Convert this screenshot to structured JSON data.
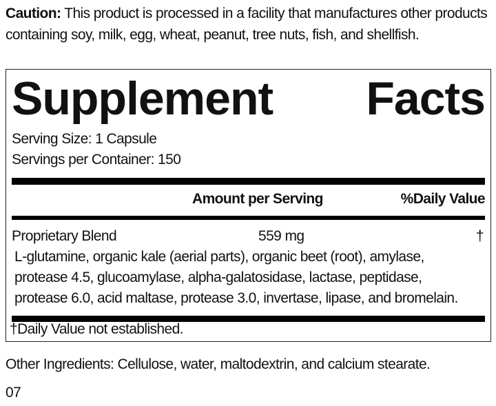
{
  "caution": {
    "label": "Caution:",
    "text": " This product is processed in a facility that manufactures other products containing soy, milk, egg, wheat, peanut, tree nuts, fish, and shellfish."
  },
  "facts": {
    "title_word1": "Supplement",
    "title_word2": "Facts",
    "serving_size": "Serving Size: 1 Capsule",
    "servings_per_container": "Servings per Container: 150",
    "header_amount": "Amount per Serving",
    "header_dv": "%Daily Value",
    "blend": {
      "name": "Proprietary Blend",
      "amount": "559 mg",
      "dv": "†"
    },
    "ingredients_lines": [
      "L-glutamine, organic kale (aerial parts), organic beet (root), amylase,",
      "protease 4.5, glucoamylase, alpha-galatosidase, lactase, peptidase,",
      "protease 6.0, acid maltase, protease 3.0, invertase, lipase, and bromelain."
    ],
    "footnote": "†Daily Value not established."
  },
  "other_ingredients": "Other Ingredients: Cellulose, water, maltodextrin, and calcium stearate.",
  "code": "07"
}
